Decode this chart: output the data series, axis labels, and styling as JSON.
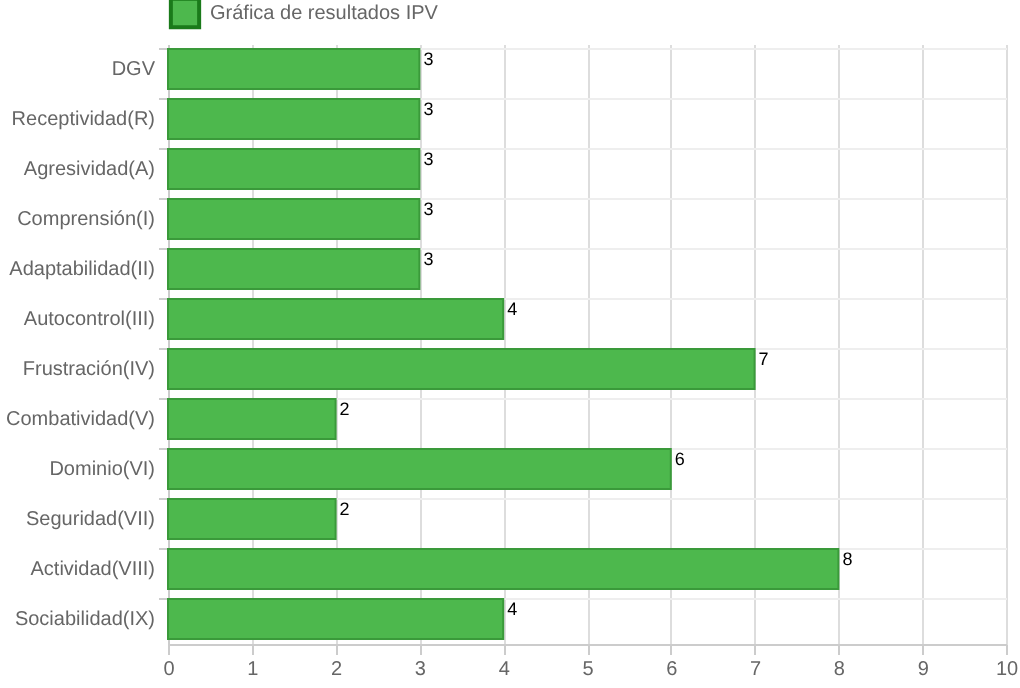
{
  "chart_data": {
    "type": "bar",
    "orientation": "horizontal",
    "categories": [
      "DGV",
      "Receptividad(R)",
      "Agresividad(A)",
      "Comprensión(I)",
      "Adaptabilidad(II)",
      "Autocontrol(III)",
      "Frustración(IV)",
      "Combatividad(V)",
      "Dominio(VI)",
      "Seguridad(VII)",
      "Actividad(VIII)",
      "Sociabilidad(IX)"
    ],
    "series": [
      {
        "name": "Gráfica de resultados IPV",
        "color": "#4db84d",
        "values": [
          3,
          3,
          3,
          3,
          3,
          4,
          7,
          2,
          6,
          2,
          8,
          4
        ]
      }
    ],
    "xlim": [
      0,
      10
    ],
    "xticks": [
      0,
      1,
      2,
      3,
      4,
      5,
      6,
      7,
      8,
      9,
      10
    ],
    "grid": true,
    "legend": "top",
    "data_labels": true
  }
}
